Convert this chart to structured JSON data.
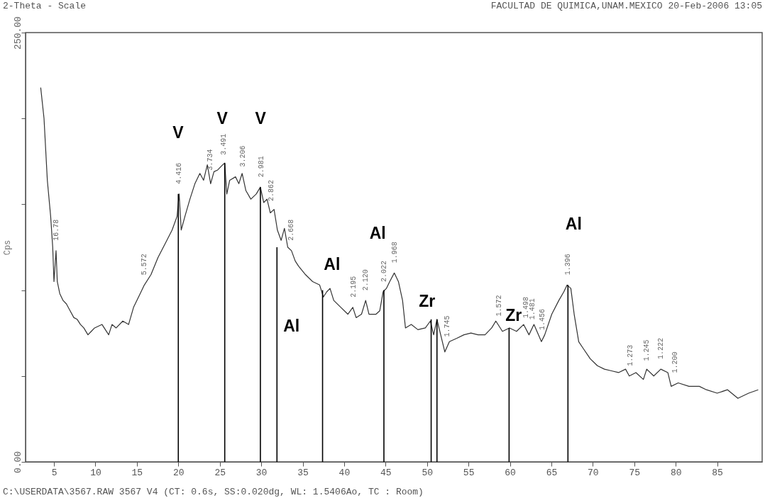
{
  "chart_data": {
    "type": "line",
    "title": "2-Theta - Scale",
    "subtitle": "FACULTAD DE QUIMICA,UNAM.MEXICO 20-Feb-2006 13:05",
    "ylabel": "Cps",
    "xlim": [
      2,
      90
    ],
    "xticks": [
      5,
      10,
      15,
      20,
      25,
      30,
      35,
      40,
      45,
      50,
      55,
      60,
      65,
      70,
      75,
      80,
      85
    ],
    "ylim": [
      0,
      250
    ],
    "yticks": [
      {
        "value": 0,
        "label": "0.00"
      },
      {
        "value": 50,
        "label": null
      },
      {
        "value": 100,
        "label": null
      },
      {
        "value": 150,
        "label": null
      },
      {
        "value": 200,
        "label": null
      },
      {
        "value": 250,
        "label": "250.00"
      }
    ],
    "series": [
      {
        "color": "#333333",
        "x": [
          3.4,
          3.8,
          4.2,
          4.6,
          4.85,
          5.0,
          5.25,
          5.4,
          5.7,
          6.1,
          6.5,
          6.95,
          7.4,
          7.8,
          8.2,
          8.6,
          9.1,
          9.5,
          9.9,
          10.8,
          11.6,
          12.0,
          12.5,
          13.3,
          14.0,
          14.6,
          15.4,
          15.9,
          16.7,
          17.55,
          18.4,
          19.25,
          19.85,
          20.1,
          20.35,
          20.8,
          21.4,
          22.0,
          22.6,
          23.05,
          23.5,
          23.9,
          24.3,
          24.75,
          25.35,
          25.6,
          25.85,
          26.2,
          26.9,
          27.3,
          27.7,
          28.15,
          28.75,
          29.4,
          29.9,
          30.3,
          30.7,
          31.1,
          31.55,
          31.95,
          32.4,
          32.8,
          33.2,
          33.65,
          34.1,
          34.5,
          35.35,
          36.2,
          37.05,
          37.5,
          37.9,
          38.3,
          38.75,
          39.6,
          40.45,
          41.05,
          41.45,
          42.1,
          42.6,
          43.0,
          43.85,
          44.3,
          44.7,
          45.1,
          45.5,
          46.05,
          46.55,
          47.05,
          47.4,
          48.1,
          48.9,
          49.8,
          50.4,
          50.8,
          51.2,
          51.65,
          52.15,
          52.7,
          53.6,
          54.45,
          55.3,
          56.15,
          57.0,
          57.8,
          58.3,
          59.1,
          59.95,
          60.8,
          61.65,
          62.3,
          62.9,
          63.8,
          64.2,
          65.05,
          65.9,
          66.5,
          66.9,
          67.35,
          67.75,
          68.3,
          68.85,
          69.7,
          70.55,
          71.4,
          72.25,
          73.1,
          73.95,
          74.4,
          75.2,
          76.1,
          76.5,
          77.35,
          78.2,
          79.05,
          79.45,
          80.3,
          81.6,
          82.85,
          83.7,
          85.0,
          86.25,
          87.5,
          88.8,
          89.95
        ],
        "values": [
          218,
          200,
          164,
          143,
          125,
          105,
          123,
          105,
          98,
          94,
          92,
          88,
          84,
          83,
          80,
          78,
          74,
          76,
          78,
          80,
          74,
          80,
          78,
          82,
          80,
          90,
          98,
          103,
          109,
          119,
          127,
          135,
          143,
          156,
          135,
          143,
          153,
          162,
          168,
          164,
          173,
          162,
          169,
          170,
          173,
          174,
          156,
          164,
          166,
          162,
          168,
          158,
          153,
          156,
          160,
          151,
          153,
          145,
          147,
          135,
          129,
          136,
          125,
          123,
          117,
          114,
          109,
          105,
          103,
          96,
          99,
          101,
          94,
          90,
          86,
          90,
          84,
          86,
          94,
          86,
          86,
          88,
          99,
          101,
          105,
          110,
          105,
          94,
          78,
          80,
          77,
          78,
          82,
          74,
          83,
          74,
          64,
          70,
          72,
          74,
          75,
          74,
          74,
          78,
          82,
          76,
          78,
          76,
          80,
          74,
          80,
          70,
          74,
          86,
          94,
          99,
          103,
          101,
          86,
          70,
          66,
          60,
          56,
          54,
          53,
          52,
          54,
          50,
          52,
          48,
          54,
          50,
          54,
          52,
          44,
          46,
          44,
          44,
          42,
          40,
          42,
          37,
          40,
          42
        ]
      },
      {
        "type": "bar",
        "color": "#000000",
        "x": [
          20.0,
          25.6,
          29.9,
          31.9,
          37.4,
          44.8,
          50.5,
          51.2,
          59.9,
          67.0
        ],
        "values": [
          156,
          174,
          160,
          125,
          100,
          100,
          83,
          83,
          78,
          103
        ]
      }
    ],
    "annotations": [
      "V",
      "V",
      "V",
      "Al",
      "Al",
      "Al",
      "Zr",
      "Zr",
      "Al",
      {
        "text": "16.78",
        "x": 5.26,
        "y": 123
      },
      {
        "text": "5.572",
        "x": 15.89,
        "y": 103
      },
      {
        "text": "4.416",
        "x": 20.09,
        "y": 156
      },
      {
        "text": "3.734",
        "x": 23.81,
        "y": 164
      },
      {
        "text": "3.491",
        "x": 25.49,
        "y": 173
      },
      {
        "text": "3.206",
        "x": 27.8,
        "y": 166
      },
      {
        "text": "2.981",
        "x": 29.95,
        "y": 160
      },
      {
        "text": "2.862",
        "x": 31.23,
        "y": 146
      },
      {
        "text": "2.668",
        "x": 33.56,
        "y": 123
      },
      {
        "text": "2.195",
        "x": 41.09,
        "y": 90
      },
      {
        "text": "2.120",
        "x": 42.61,
        "y": 94
      },
      {
        "text": "2.022",
        "x": 44.79,
        "y": 99
      },
      {
        "text": "1.968",
        "x": 46.09,
        "y": 110
      },
      {
        "text": "1.745",
        "x": 52.39,
        "y": 67
      },
      {
        "text": "1.572",
        "x": 58.68,
        "y": 79
      },
      {
        "text": "1.498",
        "x": 61.89,
        "y": 78
      },
      {
        "text": "1.481",
        "x": 62.68,
        "y": 77
      },
      {
        "text": "1.456",
        "x": 63.88,
        "y": 71
      },
      {
        "text": "1.396",
        "x": 66.98,
        "y": 103
      },
      {
        "text": "1.273",
        "x": 74.47,
        "y": 50
      },
      {
        "text": "1.245",
        "x": 76.44,
        "y": 53
      },
      {
        "text": "1.222",
        "x": 78.15,
        "y": 54
      },
      {
        "text": "1.200",
        "x": 79.88,
        "y": 46
      },
      "C:\\USERDATA\\3567.RAW 3567 V4 (CT:  0.6s, SS:0.020dg, WL: 1.5406Ao, TC : Room)"
    ]
  }
}
